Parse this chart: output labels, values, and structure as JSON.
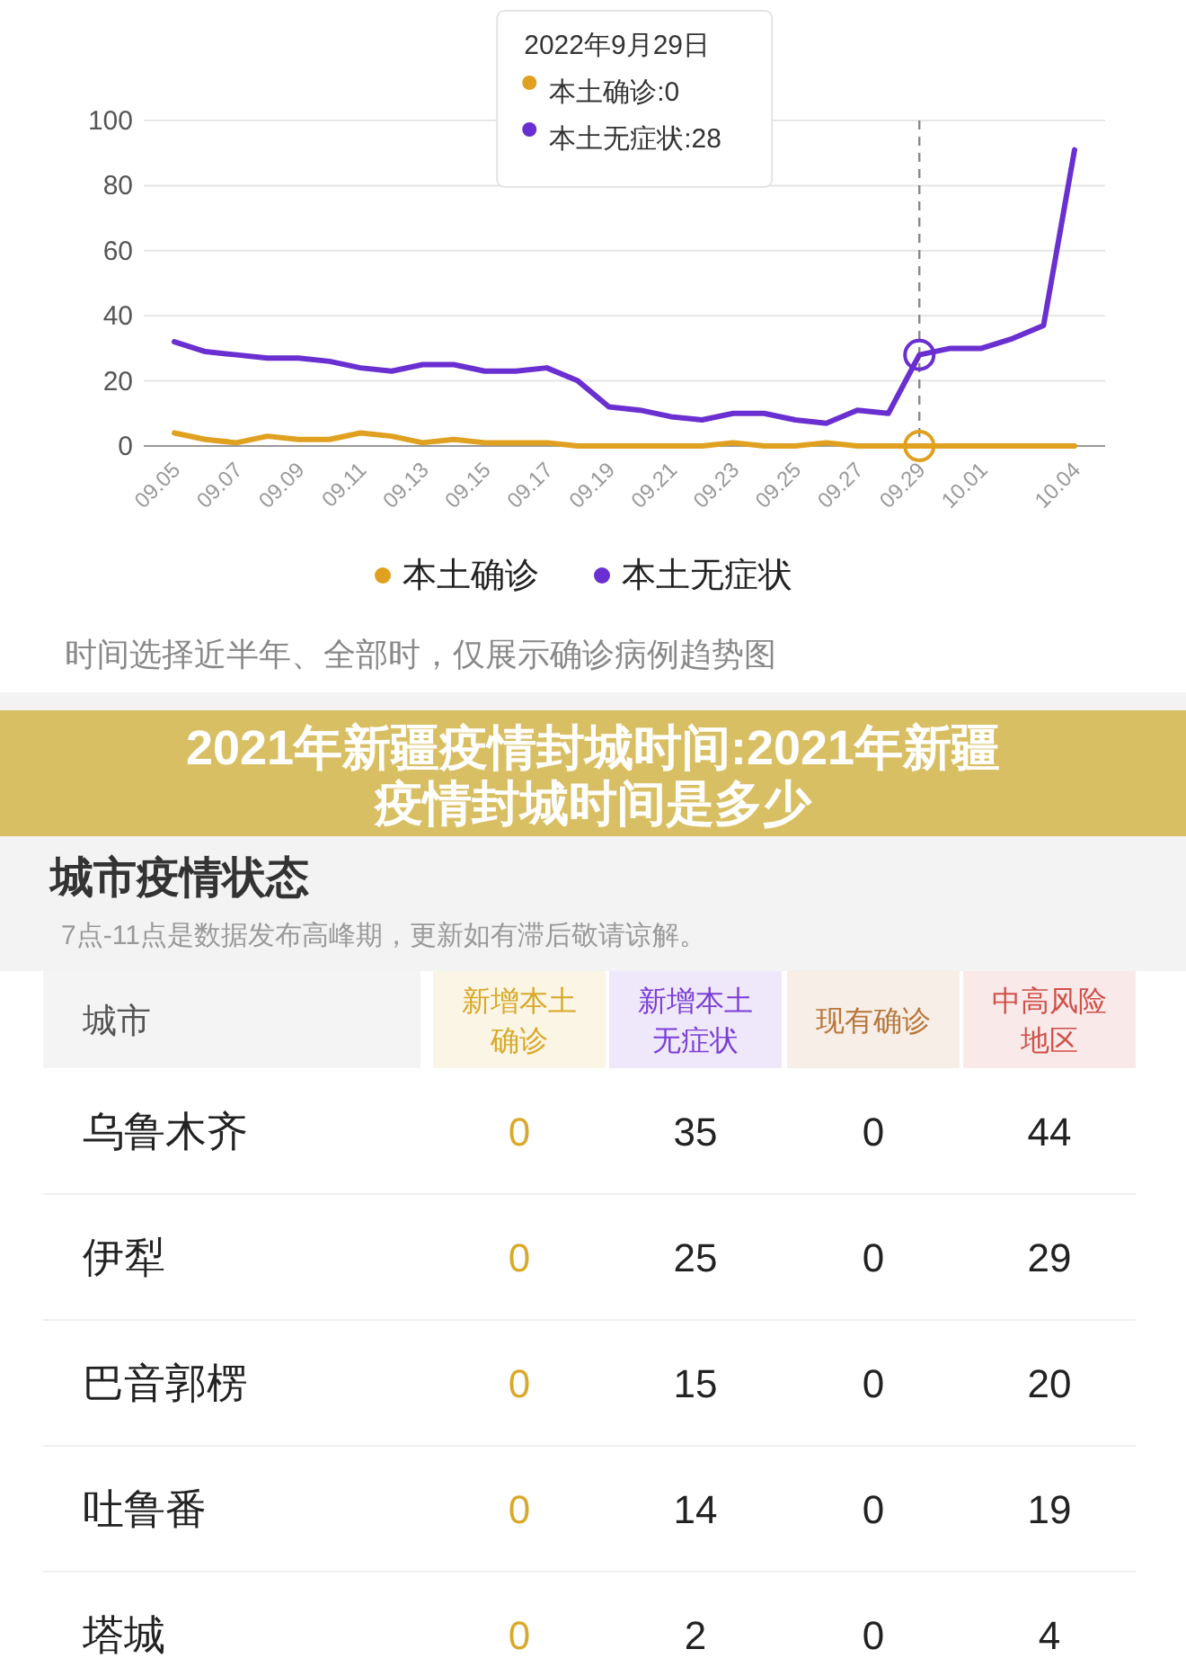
{
  "chart_data": [
    {
      "type": "line",
      "categories": [
        "09.05",
        null,
        "09.07",
        null,
        "09.09",
        null,
        "09.11",
        null,
        "09.13",
        null,
        "09.15",
        null,
        "09.17",
        null,
        "09.19",
        null,
        "09.21",
        null,
        "09.23",
        null,
        "09.25",
        null,
        "09.27",
        null,
        "09.29",
        null,
        "10.01",
        null,
        null,
        "10.04"
      ],
      "series": [
        {
          "name": "本土确诊",
          "color": "#e0a020",
          "values": [
            4,
            2,
            1,
            3,
            2,
            2,
            4,
            3,
            1,
            2,
            1,
            1,
            1,
            0,
            0,
            0,
            0,
            0,
            1,
            0,
            0,
            1,
            0,
            0,
            0,
            0,
            0,
            0,
            0,
            0
          ]
        },
        {
          "name": "本土无症状",
          "color": "#6a2fd0",
          "values": [
            32,
            29,
            28,
            27,
            27,
            26,
            24,
            23,
            25,
            25,
            23,
            23,
            24,
            20,
            12,
            11,
            9,
            8,
            10,
            10,
            8,
            7,
            11,
            10,
            28,
            30,
            30,
            33,
            37,
            91
          ]
        }
      ],
      "ylim": [
        0,
        100
      ],
      "yticks": [
        0,
        20,
        40,
        60,
        80,
        100
      ],
      "grid": "y",
      "legend": "bottom",
      "marker": "none",
      "line_style": "solid",
      "ref_lines": [
        {
          "axis": "x",
          "value": "09.29",
          "line_style": "dashed",
          "color": "#888888"
        }
      ],
      "annotations": [
        "2022年9月29日",
        "本土确诊:0",
        "本土无症状:28",
        "时间选择近半年、全部时，仅展示确诊病例趋势图"
      ]
    },
    {
      "type": "heatmap",
      "data_labels": true,
      "title": "2021年新疆疫情封城时间:2021年新疆疫情封城时间是多少",
      "subtitle": "城市疫情状态",
      "annotations": [
        "7点-11点是数据发布高峰期，更新如有滞后敬请谅解。"
      ],
      "ylabel": "城市",
      "categories": [
        "新增本土确诊",
        "新增本土无症状",
        "现有确诊",
        "中高风险地区"
      ],
      "colors": [
        "#d9a92a",
        "#7b3fd6",
        "#b8773a",
        "#d0504a"
      ],
      "y_categories": [
        "乌鲁木齐",
        "伊犁",
        "巴音郭楞",
        "吐鲁番",
        "塔城"
      ],
      "cells": [
        [
          0,
          35,
          0,
          44
        ],
        [
          0,
          25,
          0,
          29
        ],
        [
          0,
          15,
          0,
          20
        ],
        [
          0,
          14,
          0,
          19
        ],
        [
          0,
          2,
          0,
          4
        ]
      ]
    }
  ]
}
